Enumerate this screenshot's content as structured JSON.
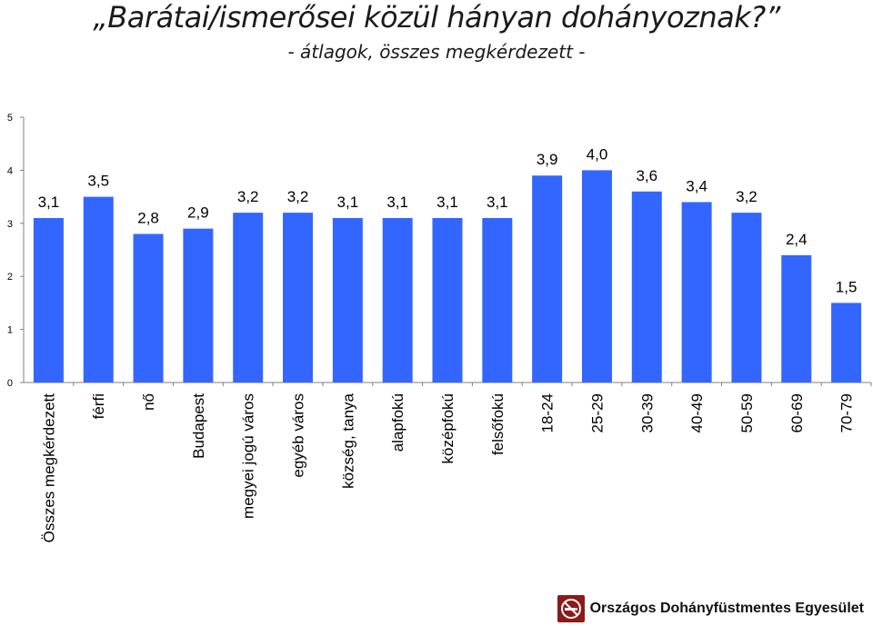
{
  "title": "„Barátai/ismerősei közül hányan dohányoznak?”",
  "subtitle": "- átlagok, összes megkérdezett -",
  "colors": {
    "bar": "#3366ff",
    "axis": "#808080",
    "text": "#000000"
  },
  "chart_data": {
    "type": "bar",
    "title": "„Barátai/ismerősei közül hányan dohányoznak?”",
    "subtitle": "- átlagok, összes megkérdezett -",
    "xlabel": "",
    "ylabel": "",
    "ylim": [
      0,
      5
    ],
    "yticks": [
      0,
      1,
      2,
      3,
      4,
      5
    ],
    "grid": false,
    "legend": "none",
    "categories": [
      "Összes megkérdezett",
      "férfi",
      "nő",
      "Budapest",
      "megyei jogú város",
      "egyéb város",
      "község, tanya",
      "alapfokú",
      "középfokú",
      "felsőfokú",
      "18-24",
      "25-29",
      "30-39",
      "40-49",
      "50-59",
      "60-69",
      "70-79"
    ],
    "values": [
      3.1,
      3.5,
      2.8,
      2.9,
      3.2,
      3.2,
      3.1,
      3.1,
      3.1,
      3.1,
      3.9,
      4.0,
      3.6,
      3.4,
      3.2,
      2.4,
      1.5
    ],
    "value_labels": [
      "3,1",
      "3,5",
      "2,8",
      "2,9",
      "3,2",
      "3,2",
      "3,1",
      "3,1",
      "3,1",
      "3,1",
      "3,9",
      "4,0",
      "3,6",
      "3,4",
      "3,2",
      "2,4",
      "1,5"
    ]
  },
  "footer": {
    "org_name": "Országos Dohányfüstmentes Egyesület",
    "logo_icon": "no-smoking-icon"
  }
}
